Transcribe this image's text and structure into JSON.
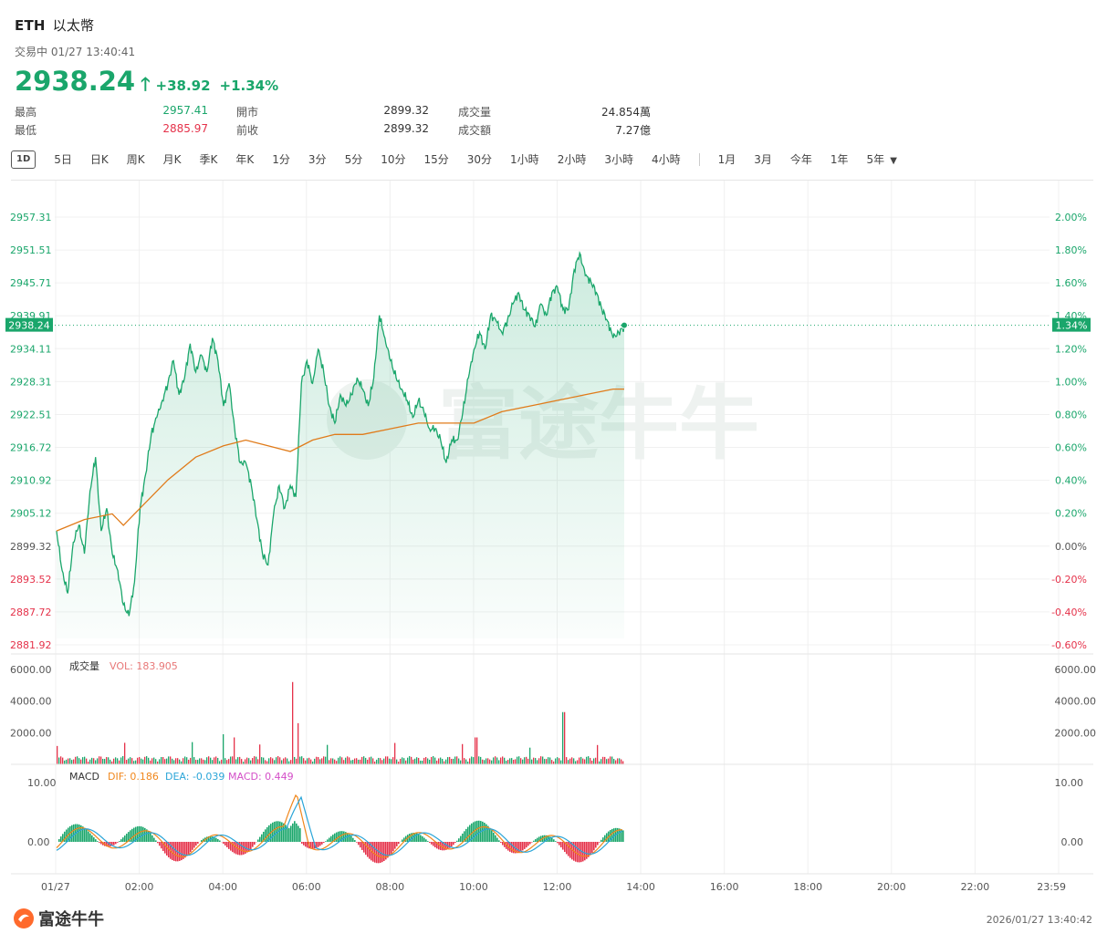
{
  "header": {
    "symbol": "ETH",
    "name": "以太幣",
    "status": "交易中 01/27 13:40:41",
    "price": "2938.24",
    "change": "+38.92",
    "change_pct": "+1.34%"
  },
  "stats": {
    "high_label": "最高",
    "high": "2957.41",
    "low_label": "最低",
    "low": "2885.97",
    "open_label": "開市",
    "open": "2899.32",
    "prev_label": "前收",
    "prev": "2899.32",
    "vol_label": "成交量",
    "vol": "24.854萬",
    "amt_label": "成交額",
    "amt": "7.27億"
  },
  "tabs": {
    "active": "1D",
    "group1": [
      "5日",
      "日K",
      "周K",
      "月K",
      "季K",
      "年K",
      "1分",
      "3分",
      "5分",
      "10分",
      "15分",
      "30分",
      "1小時",
      "2小時",
      "3小時",
      "4小時"
    ],
    "group2": [
      "1月",
      "3月",
      "今年",
      "1年",
      "5年"
    ]
  },
  "price_axis": {
    "left": [
      "2957.31",
      "2951.51",
      "2945.71",
      "2939.91",
      "2934.11",
      "2928.31",
      "2922.51",
      "2916.72",
      "2910.92",
      "2905.12",
      "2899.32",
      "2893.52",
      "2887.72",
      "2881.92"
    ],
    "right": [
      "2.00%",
      "1.80%",
      "1.60%",
      "1.40%",
      "1.20%",
      "1.00%",
      "0.80%",
      "0.60%",
      "0.40%",
      "0.20%",
      "0.00%",
      "-0.20%",
      "-0.40%",
      "-0.60%"
    ],
    "current_left": "2938.24",
    "current_right": "1.34%"
  },
  "volume_panel": {
    "title": "成交量",
    "vol_text": "VOL: 183.905",
    "axis": [
      "6000.00",
      "4000.00",
      "2000.00"
    ]
  },
  "macd_panel": {
    "title": "MACD",
    "dif_text": "DIF: 0.186",
    "dea_text": "DEA: -0.039",
    "macd_text": "MACD: 0.449",
    "axis": [
      "10.00",
      "0.00"
    ]
  },
  "time_axis": [
    "01/27",
    "02:00",
    "04:00",
    "06:00",
    "08:00",
    "10:00",
    "12:00",
    "14:00",
    "16:00",
    "18:00",
    "20:00",
    "22:00",
    "23:59"
  ],
  "watermark": "富途牛牛",
  "footer": {
    "logo_text": "富途牛牛",
    "timestamp": "2026/01/27 13:40:42"
  },
  "colors": {
    "up": "#1aa66b",
    "down": "#e5324a",
    "avg_line": "#e07b1a",
    "dif": "#f0871c",
    "dea": "#2aa5d8",
    "macd_label": "#d44fc8"
  },
  "chart_data": {
    "type": "line",
    "ylim": [
      2881.92,
      2963.11
    ],
    "prev_close": 2899.32,
    "price_points": [
      [
        0,
        2902
      ],
      [
        1,
        2895
      ],
      [
        2,
        2891
      ],
      [
        3,
        2900
      ],
      [
        4,
        2903
      ],
      [
        5,
        2898
      ],
      [
        6,
        2909
      ],
      [
        7,
        2915
      ],
      [
        8,
        2902
      ],
      [
        9,
        2906
      ],
      [
        10,
        2898
      ],
      [
        11,
        2895
      ],
      [
        12,
        2889
      ],
      [
        13,
        2887
      ],
      [
        14,
        2893
      ],
      [
        15,
        2906
      ],
      [
        16,
        2912
      ],
      [
        17,
        2919
      ],
      [
        18,
        2922
      ],
      [
        19,
        2925
      ],
      [
        20,
        2928
      ],
      [
        21,
        2932
      ],
      [
        22,
        2926
      ],
      [
        23,
        2929
      ],
      [
        24,
        2935
      ],
      [
        25,
        2930
      ],
      [
        26,
        2933
      ],
      [
        27,
        2930
      ],
      [
        28,
        2936
      ],
      [
        29,
        2932
      ],
      [
        30,
        2924
      ],
      [
        31,
        2928
      ],
      [
        32,
        2920
      ],
      [
        33,
        2914
      ],
      [
        34,
        2914
      ],
      [
        35,
        2910
      ],
      [
        36,
        2904
      ],
      [
        37,
        2898
      ],
      [
        38,
        2896
      ],
      [
        39,
        2905
      ],
      [
        40,
        2910
      ],
      [
        41,
        2906
      ],
      [
        42,
        2910
      ],
      [
        43,
        2908
      ],
      [
        44,
        2928
      ],
      [
        45,
        2932
      ],
      [
        46,
        2928
      ],
      [
        47,
        2934
      ],
      [
        48,
        2930
      ],
      [
        49,
        2924
      ],
      [
        50,
        2921
      ],
      [
        51,
        2926
      ],
      [
        52,
        2924
      ],
      [
        53,
        2926
      ],
      [
        54,
        2929
      ],
      [
        55,
        2927
      ],
      [
        56,
        2924
      ],
      [
        57,
        2929
      ],
      [
        58,
        2940
      ],
      [
        59,
        2936
      ],
      [
        60,
        2932
      ],
      [
        61,
        2929
      ],
      [
        62,
        2927
      ],
      [
        63,
        2925
      ],
      [
        64,
        2922
      ],
      [
        65,
        2925
      ],
      [
        66,
        2923
      ],
      [
        67,
        2920
      ],
      [
        68,
        2920
      ],
      [
        69,
        2918
      ],
      [
        70,
        2914
      ],
      [
        71,
        2918
      ],
      [
        72,
        2918
      ],
      [
        73,
        2923
      ],
      [
        74,
        2929
      ],
      [
        75,
        2934
      ],
      [
        76,
        2937
      ],
      [
        77,
        2934
      ],
      [
        78,
        2940
      ],
      [
        79,
        2939
      ],
      [
        80,
        2937
      ],
      [
        81,
        2939
      ],
      [
        82,
        2942
      ],
      [
        83,
        2944
      ],
      [
        84,
        2941
      ],
      [
        85,
        2940
      ],
      [
        86,
        2938
      ],
      [
        87,
        2942
      ],
      [
        88,
        2940
      ],
      [
        89,
        2944
      ],
      [
        90,
        2945
      ],
      [
        91,
        2941
      ],
      [
        92,
        2941
      ],
      [
        93,
        2948
      ],
      [
        94,
        2951
      ],
      [
        95,
        2947
      ],
      [
        96,
        2946
      ],
      [
        97,
        2944
      ],
      [
        98,
        2941
      ],
      [
        99,
        2939
      ],
      [
        100,
        2936
      ],
      [
        101,
        2937
      ],
      [
        102,
        2938
      ]
    ],
    "avg_points": [
      [
        0,
        2902
      ],
      [
        5,
        2904
      ],
      [
        10,
        2905
      ],
      [
        12,
        2903
      ],
      [
        15,
        2906
      ],
      [
        20,
        2911
      ],
      [
        25,
        2915
      ],
      [
        30,
        2917
      ],
      [
        34,
        2918
      ],
      [
        38,
        2917
      ],
      [
        42,
        2916
      ],
      [
        46,
        2918
      ],
      [
        50,
        2919
      ],
      [
        55,
        2919
      ],
      [
        60,
        2920
      ],
      [
        65,
        2921
      ],
      [
        70,
        2921
      ],
      [
        75,
        2921
      ],
      [
        80,
        2923
      ],
      [
        85,
        2924
      ],
      [
        90,
        2925
      ],
      [
        95,
        2926
      ],
      [
        100,
        2927
      ],
      [
        102,
        2927
      ]
    ],
    "volume_ylim": [
      0,
      6800
    ],
    "macd_ylim": [
      -5,
      12
    ]
  }
}
